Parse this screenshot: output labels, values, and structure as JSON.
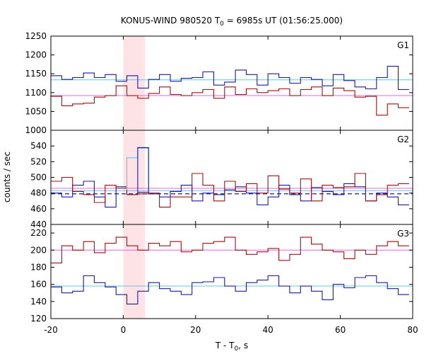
{
  "title": {
    "prefix": "KONUS-WIND 980520 T",
    "sub": "0",
    "suffix": " = 6985s UT (01:56:25.000)"
  },
  "ylabel": "counts / sec",
  "xlabel": {
    "prefix": "T - T",
    "sub": "0",
    "suffix": ", s"
  },
  "colors": {
    "hard_series": "#1a1aa0",
    "soft_series": "#a01010",
    "hard_background": "#5bc8e8",
    "soft_background": "#e066e0",
    "interval_shade": "#fde3e6"
  },
  "chart_data": {
    "type": "line",
    "xlim": [
      -20,
      80
    ],
    "x_ticks": [
      "-20",
      "0",
      "20",
      "40",
      "60",
      "80"
    ],
    "x_tick_values": [
      -20,
      0,
      20,
      40,
      60,
      80
    ],
    "shaded_interval": [
      0,
      6
    ],
    "grid": false,
    "panels": [
      {
        "name": "G1",
        "ylim": [
          1000,
          1250
        ],
        "y_ticks": [
          "1000",
          "1050",
          "1100",
          "1150",
          "1200",
          "1250"
        ],
        "y_tick_values": [
          1000,
          1050,
          1100,
          1150,
          1200,
          1250
        ],
        "bin_edges": [
          -20,
          -17,
          -14,
          -11,
          -8,
          -5,
          -2,
          1,
          4,
          7,
          10,
          13,
          16,
          19,
          22,
          25,
          28,
          31,
          34,
          37,
          40,
          43,
          46,
          49,
          52,
          55,
          58,
          61,
          64,
          67,
          70,
          73,
          76,
          79
        ],
        "series": [
          {
            "color": "hard_series",
            "values": [
              1145,
              1135,
              1140,
              1152,
              1140,
              1148,
              1130,
              1145,
              1112,
              1135,
              1148,
              1130,
              1138,
              1140,
              1155,
              1120,
              1128,
              1160,
              1148,
              1120,
              1150,
              1140,
              1125,
              1140,
              1135,
              1118,
              1148,
              1132,
              1115,
              1110,
              1140,
              1170,
              1108
            ]
          },
          {
            "color": "soft_series",
            "values": [
              1090,
              1065,
              1070,
              1072,
              1088,
              1092,
              1118,
              1092,
              1085,
              1098,
              1115,
              1095,
              1092,
              1100,
              1108,
              1085,
              1115,
              1095,
              1110,
              1100,
              1105,
              1110,
              1092,
              1108,
              1115,
              1092,
              1112,
              1105,
              1088,
              1090,
              1040,
              1070,
              1060
            ]
          }
        ],
        "background": [
          {
            "color": "hard_background",
            "value": 1134
          },
          {
            "color": "soft_background",
            "value": 1092
          }
        ]
      },
      {
        "name": "G2",
        "ylim": [
          440,
          560
        ],
        "y_ticks": [
          "440",
          "460",
          "480",
          "500",
          "520",
          "540"
        ],
        "y_tick_values": [
          440,
          460,
          480,
          500,
          520,
          540
        ],
        "bin_edges": [
          -20,
          -17,
          -14,
          -11,
          -8,
          -5,
          -2,
          1,
          4,
          7,
          10,
          13,
          16,
          19,
          22,
          25,
          28,
          31,
          34,
          37,
          40,
          43,
          46,
          49,
          52,
          55,
          58,
          61,
          64,
          67,
          70,
          73,
          76,
          79
        ],
        "series": [
          {
            "color": "hard_series",
            "values": [
              480,
              475,
              490,
              495,
              475,
              462,
              488,
              478,
              481,
              479,
              475,
              482,
              490,
              470,
              480,
              478,
              484,
              488,
              480,
              465,
              475,
              490,
              478,
              470,
              487,
              482,
              478,
              492,
              488,
              470,
              480,
              475,
              465
            ]
          },
          {
            "color": "soft_series",
            "values": [
              495,
              500,
              482,
              478,
              468,
              490,
              486,
              478,
              479,
              480,
              462,
              475,
              475,
              505,
              490,
              470,
              495,
              482,
              492,
              480,
              502,
              485,
              480,
              498,
              470,
              490,
              487,
              488,
              505,
              470,
              478,
              490,
              492
            ]
          }
        ],
        "overlay_series": {
          "color": "hard_background",
          "bin_edges": [
            1,
            4,
            7
          ],
          "values": [
            525,
            537
          ]
        },
        "spike_series": {
          "color": "hard_series",
          "bin_edges": [
            4,
            7
          ],
          "values": [
            538
          ]
        },
        "background": [
          {
            "color": "hard_background",
            "value": 483
          },
          {
            "color": "soft_background",
            "value": 486
          }
        ],
        "dashed_level": {
          "color": "hard_series",
          "value": 479
        }
      },
      {
        "name": "G3",
        "ylim": [
          120,
          230
        ],
        "y_ticks": [
          "120",
          "140",
          "160",
          "180",
          "200",
          "220"
        ],
        "y_tick_values": [
          120,
          140,
          160,
          180,
          200,
          220
        ],
        "bin_edges": [
          -20,
          -17,
          -14,
          -11,
          -8,
          -5,
          -2,
          1,
          4,
          7,
          10,
          13,
          16,
          19,
          22,
          25,
          28,
          31,
          34,
          37,
          40,
          43,
          46,
          49,
          52,
          55,
          58,
          61,
          64,
          67,
          70,
          73,
          76,
          79
        ],
        "series": [
          {
            "color": "hard_series",
            "values": [
              157,
              150,
              152,
              170,
              162,
              157,
              148,
              137,
              152,
              162,
              155,
              152,
              148,
              162,
              163,
              168,
              158,
              152,
              162,
              165,
              170,
              158,
              150,
              158,
              152,
              142,
              160,
              156,
              168,
              170,
              162,
              155,
              148
            ]
          },
          {
            "color": "soft_series",
            "values": [
              185,
              205,
              200,
              210,
              197,
              208,
              215,
              205,
              200,
              208,
              205,
              210,
              198,
              200,
              208,
              210,
              215,
              200,
              195,
              198,
              202,
              188,
              195,
              215,
              207,
              200,
              198,
              190,
              200,
              195,
              205,
              210,
              205
            ]
          }
        ],
        "background": [
          {
            "color": "hard_background",
            "value": 158
          },
          {
            "color": "soft_background",
            "value": 200
          }
        ]
      }
    ]
  }
}
